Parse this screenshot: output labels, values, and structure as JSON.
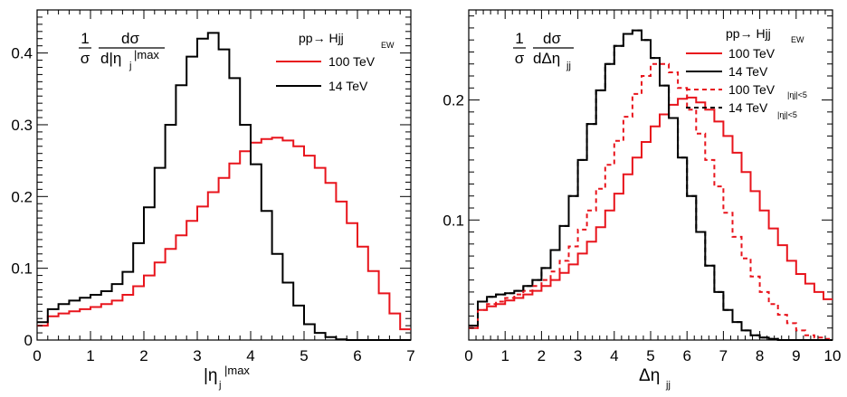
{
  "chart_data": [
    {
      "type": "line",
      "step": true,
      "xlabel": "|η",
      "xlabel_sub": "j",
      "xlabel_sup": "|max",
      "ylabel_formula": {
        "frac1_num": "1",
        "frac1_den": "σ",
        "num": "dσ",
        "den": "d|η",
        "den_sub": "j",
        "den_sup": "|max"
      },
      "process": "pp→ Hjj",
      "process_sub": "EW",
      "xlim": [
        0,
        7
      ],
      "ylim": [
        0,
        0.46
      ],
      "xticks": [
        "0",
        "1",
        "2",
        "3",
        "4",
        "5",
        "6",
        "7"
      ],
      "xtick_values": [
        0,
        1,
        2,
        3,
        4,
        5,
        6,
        7
      ],
      "yticks": [
        "0",
        "0.1",
        "0.2",
        "0.3",
        "0.4"
      ],
      "ytick_values": [
        0,
        0.1,
        0.2,
        0.3,
        0.4
      ],
      "grid": false,
      "legend_position": "top-right",
      "bin_edges": [
        0,
        0.2,
        0.4,
        0.6,
        0.8,
        1.0,
        1.2,
        1.4,
        1.6,
        1.8,
        2.0,
        2.2,
        2.4,
        2.6,
        2.8,
        3.0,
        3.2,
        3.4,
        3.6,
        3.8,
        4.0,
        4.2,
        4.4,
        4.6,
        4.8,
        5.0,
        5.2,
        5.4,
        5.6,
        5.8,
        6.0,
        6.2,
        6.4,
        6.6,
        6.8,
        7.0
      ],
      "series": [
        {
          "name": "100 TeV",
          "color": "#e8141c",
          "dash": "solid",
          "values": [
            0.02,
            0.033,
            0.037,
            0.04,
            0.043,
            0.046,
            0.05,
            0.055,
            0.063,
            0.075,
            0.09,
            0.108,
            0.127,
            0.146,
            0.166,
            0.186,
            0.206,
            0.226,
            0.246,
            0.263,
            0.275,
            0.28,
            0.282,
            0.278,
            0.27,
            0.257,
            0.24,
            0.219,
            0.193,
            0.163,
            0.13,
            0.096,
            0.065,
            0.037,
            0.015
          ]
        },
        {
          "name": "14 TeV",
          "color": "#000000",
          "dash": "solid",
          "values": [
            0.025,
            0.043,
            0.05,
            0.055,
            0.059,
            0.063,
            0.068,
            0.078,
            0.095,
            0.135,
            0.185,
            0.24,
            0.3,
            0.355,
            0.395,
            0.42,
            0.428,
            0.405,
            0.365,
            0.3,
            0.245,
            0.18,
            0.12,
            0.08,
            0.048,
            0.022,
            0.01,
            0.004,
            0.001,
            0.0,
            0.0,
            0.0,
            0.0,
            0.0,
            0.0
          ]
        }
      ]
    },
    {
      "type": "line",
      "step": true,
      "xlabel": "Δη",
      "xlabel_sub": "jj",
      "ylabel_formula": {
        "frac1_num": "1",
        "frac1_den": "σ",
        "num": "dσ",
        "den": "dΔη",
        "den_sub": "jj"
      },
      "process": "pp→ Hjj",
      "process_sub": "EW",
      "xlim": [
        0,
        10
      ],
      "ylim": [
        0,
        0.275
      ],
      "xticks": [
        "0",
        "1",
        "2",
        "3",
        "4",
        "5",
        "6",
        "7",
        "8",
        "9",
        "10"
      ],
      "xtick_values": [
        0,
        1,
        2,
        3,
        4,
        5,
        6,
        7,
        8,
        9,
        10
      ],
      "yticks": [
        "0.1",
        "0.2"
      ],
      "ytick_values": [
        0.1,
        0.2
      ],
      "grid": false,
      "legend_position": "top-right",
      "bin_edges": [
        0,
        0.25,
        0.5,
        0.75,
        1.0,
        1.25,
        1.5,
        1.75,
        2.0,
        2.25,
        2.5,
        2.75,
        3.0,
        3.25,
        3.5,
        3.75,
        4.0,
        4.25,
        4.5,
        4.75,
        5.0,
        5.25,
        5.5,
        5.75,
        6.0,
        6.25,
        6.5,
        6.75,
        7.0,
        7.25,
        7.5,
        7.75,
        8.0,
        8.25,
        8.5,
        8.75,
        9.0,
        9.25,
        9.5,
        9.75,
        10.0
      ],
      "series": [
        {
          "name": "100 TeV",
          "color": "#e8141c",
          "dash": "solid",
          "values": [
            0.01,
            0.025,
            0.028,
            0.03,
            0.033,
            0.035,
            0.038,
            0.041,
            0.045,
            0.05,
            0.056,
            0.063,
            0.072,
            0.082,
            0.094,
            0.108,
            0.122,
            0.138,
            0.152,
            0.165,
            0.178,
            0.188,
            0.196,
            0.201,
            0.202,
            0.198,
            0.192,
            0.182,
            0.17,
            0.156,
            0.14,
            0.124,
            0.108,
            0.093,
            0.079,
            0.066,
            0.055,
            0.047,
            0.04,
            0.034
          ]
        },
        {
          "name": "14 TeV",
          "color": "#000000",
          "dash": "solid",
          "values": [
            0.012,
            0.032,
            0.036,
            0.038,
            0.039,
            0.041,
            0.045,
            0.05,
            0.06,
            0.075,
            0.095,
            0.12,
            0.15,
            0.18,
            0.208,
            0.23,
            0.245,
            0.255,
            0.258,
            0.25,
            0.235,
            0.212,
            0.185,
            0.152,
            0.12,
            0.09,
            0.062,
            0.04,
            0.025,
            0.015,
            0.008,
            0.004,
            0.002,
            0.001,
            0.0,
            0.0,
            0.0,
            0.0,
            0.0,
            0.0
          ]
        },
        {
          "name": "100 TeV",
          "name_sub": "|ηj|<5",
          "color": "#e8141c",
          "dash": "dashed",
          "values": [
            0.01,
            0.025,
            0.03,
            0.032,
            0.035,
            0.038,
            0.041,
            0.045,
            0.05,
            0.057,
            0.066,
            0.078,
            0.092,
            0.108,
            0.126,
            0.146,
            0.166,
            0.186,
            0.205,
            0.22,
            0.23,
            0.23,
            0.223,
            0.21,
            0.192,
            0.172,
            0.15,
            0.128,
            0.106,
            0.086,
            0.068,
            0.053,
            0.04,
            0.03,
            0.021,
            0.014,
            0.008,
            0.004,
            0.002,
            0.001
          ]
        },
        {
          "name": "14 TeV",
          "name_sub": "|ηj|<5",
          "color": "#000000",
          "dash": "dashed",
          "values": [
            0.012,
            0.032,
            0.036,
            0.038,
            0.039,
            0.041,
            0.045,
            0.05,
            0.06,
            0.075,
            0.095,
            0.12,
            0.15,
            0.18,
            0.208,
            0.23,
            0.245,
            0.255,
            0.258,
            0.25,
            0.235,
            0.212,
            0.185,
            0.152,
            0.12,
            0.09,
            0.062,
            0.04,
            0.025,
            0.015,
            0.008,
            0.004,
            0.002,
            0.001,
            0.0,
            0.0,
            0.0,
            0.0,
            0.0,
            0.0
          ]
        }
      ]
    }
  ]
}
